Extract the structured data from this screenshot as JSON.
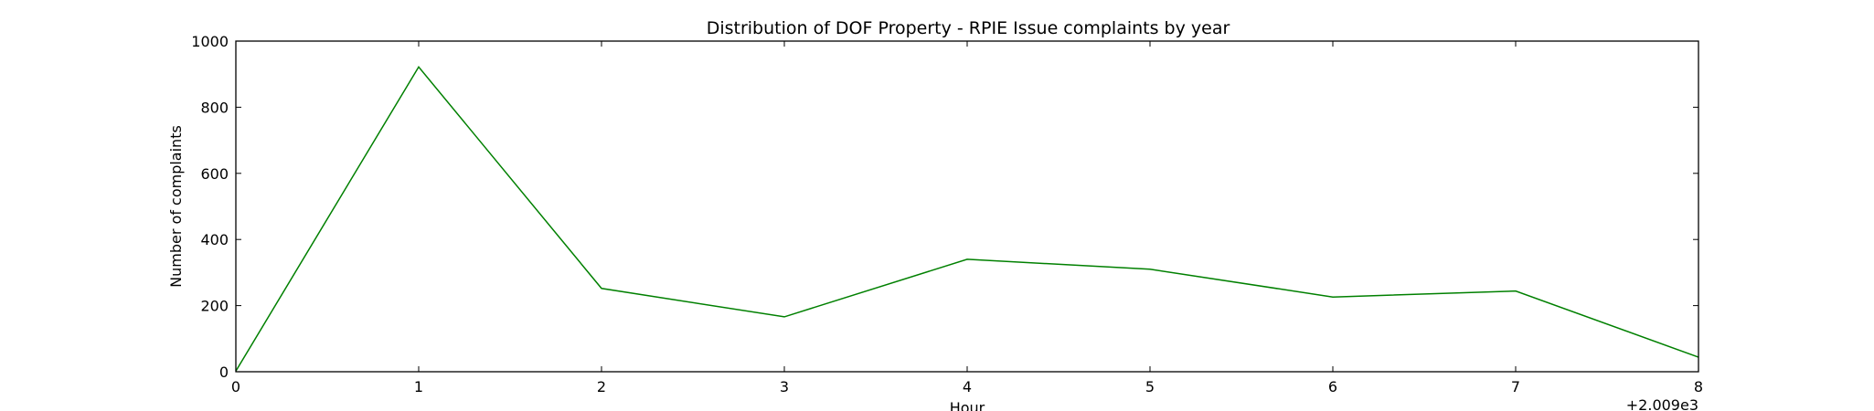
{
  "chart_data": {
    "type": "line",
    "title": "Distribution of  DOF Property - RPIE Issue complaints by year",
    "xlabel": "Hour",
    "ylabel": "Number of complaints",
    "x_offset_label": "+2.009e3",
    "xlim": [
      0,
      8
    ],
    "ylim": [
      0,
      1000
    ],
    "x_ticks": [
      0,
      1,
      2,
      3,
      4,
      5,
      6,
      7,
      8
    ],
    "y_ticks": [
      0,
      200,
      400,
      600,
      800,
      1000
    ],
    "x_tick_labels": [
      "0",
      "1",
      "2",
      "3",
      "4",
      "5",
      "6",
      "7",
      "8"
    ],
    "y_tick_labels": [
      "0",
      "200",
      "400",
      "600",
      "800",
      "1000"
    ],
    "grid": false,
    "line_color": "#008000",
    "series": [
      {
        "x": [
          0,
          1,
          2,
          3,
          4,
          5,
          6,
          7,
          8
        ],
        "values": [
          2,
          922,
          252,
          166,
          340,
          310,
          226,
          244,
          44
        ]
      }
    ]
  }
}
